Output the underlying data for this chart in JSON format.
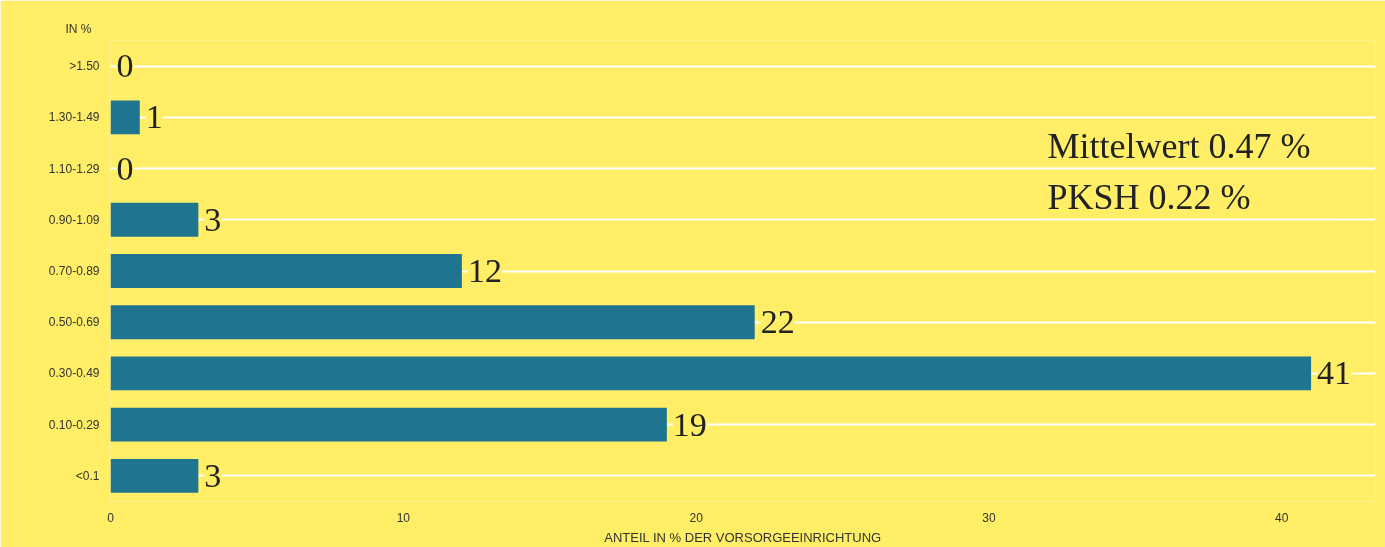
{
  "chart_data": {
    "type": "bar",
    "orientation": "horizontal",
    "ylabel": "IN %",
    "xlabel": "ANTEIL IN % DER VORSORGEEINRICHTUNG",
    "categories": [
      ">1.50",
      "1.30-1.49",
      "1.10-1.29",
      "0.90-1.09",
      "0.70-0.89",
      "0.50-0.69",
      "0.30-0.49",
      "0.10-0.29",
      "<0.1"
    ],
    "values": [
      0,
      1,
      0,
      3,
      12,
      22,
      41,
      19,
      3
    ],
    "color": "#1f7590",
    "xlim": [
      0,
      43.2
    ],
    "xticks": [
      0,
      10,
      20,
      30,
      40
    ],
    "grid": "y",
    "data_labels": true,
    "annotations": [
      "Mittelwert  0.47 %",
      "PKSH          0.22 %"
    ]
  }
}
